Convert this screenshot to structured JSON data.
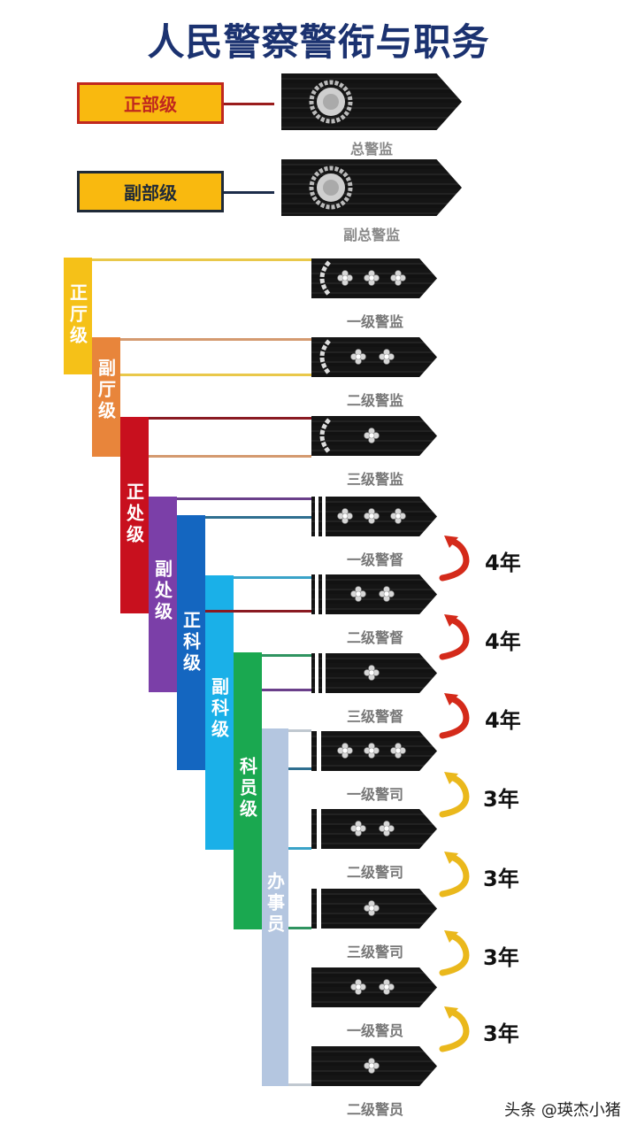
{
  "title": "人民警察警衔与职务",
  "top_levels": [
    {
      "label": "正部级",
      "rank": "总警监",
      "border": "#c0281e",
      "line": "#9a1c1c"
    },
    {
      "label": "副部级",
      "rank": "副总警监",
      "border": "#1f2a38",
      "line": "#1c2c4a"
    }
  ],
  "job_levels": [
    {
      "label": "正厅级",
      "color": "#f5c118"
    },
    {
      "label": "副厅级",
      "color": "#e8853b"
    },
    {
      "label": "正处级",
      "color": "#c8101e"
    },
    {
      "label": "副处级",
      "color": "#7b3fa8"
    },
    {
      "label": "正科级",
      "color": "#1466c0"
    },
    {
      "label": "副科级",
      "color": "#1ab0e8"
    },
    {
      "label": "科员级",
      "color": "#1aa850"
    },
    {
      "label": "办事员",
      "color": "#b4c6e0"
    }
  ],
  "ranks": [
    {
      "name": "一级警监",
      "stars": 3,
      "insignia": "laurel"
    },
    {
      "name": "二级警监",
      "stars": 2,
      "insignia": "laurel"
    },
    {
      "name": "三级警监",
      "stars": 1,
      "insignia": "laurel"
    },
    {
      "name": "一级警督",
      "stars": 3,
      "insignia": "two-stripes"
    },
    {
      "name": "二级警督",
      "stars": 2,
      "insignia": "two-stripes"
    },
    {
      "name": "三级警督",
      "stars": 1,
      "insignia": "two-stripes"
    },
    {
      "name": "一级警司",
      "stars": 3,
      "insignia": "one-stripe"
    },
    {
      "name": "二级警司",
      "stars": 2,
      "insignia": "one-stripe"
    },
    {
      "name": "三级警司",
      "stars": 1,
      "insignia": "one-stripe"
    },
    {
      "name": "一级警员",
      "stars": 2,
      "insignia": "none"
    },
    {
      "name": "二级警员",
      "stars": 1,
      "insignia": "none"
    }
  ],
  "promotions": [
    {
      "label": "4年",
      "color": "#d42a1a"
    },
    {
      "label": "4年",
      "color": "#d42a1a"
    },
    {
      "label": "4年",
      "color": "#d42a1a"
    },
    {
      "label": "3年",
      "color": "#eab81c"
    },
    {
      "label": "3年",
      "color": "#eab81c"
    },
    {
      "label": "3年",
      "color": "#eab81c"
    },
    {
      "label": "3年",
      "color": "#eab81c"
    }
  ],
  "watermark": "头条 @瑛杰小猪"
}
